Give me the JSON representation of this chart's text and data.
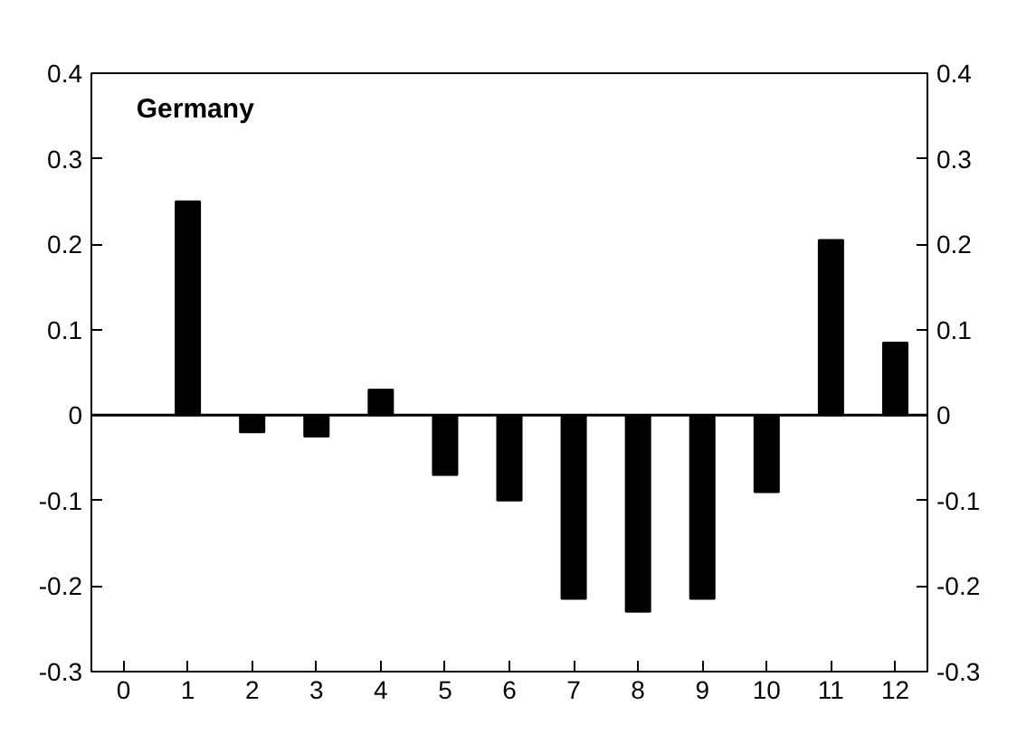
{
  "chart_data": {
    "type": "bar",
    "title": "Germany",
    "x": [
      1,
      2,
      3,
      4,
      5,
      6,
      7,
      8,
      9,
      10,
      11,
      12
    ],
    "values": [
      0.25,
      -0.02,
      -0.025,
      0.03,
      -0.07,
      -0.1,
      -0.215,
      -0.23,
      -0.215,
      -0.09,
      0.205,
      0.085
    ],
    "color": "#000000",
    "xlim": [
      -0.5,
      12.5
    ],
    "xticks": [
      0,
      1,
      2,
      3,
      4,
      5,
      6,
      7,
      8,
      9,
      10,
      11,
      12
    ],
    "ylim": [
      -0.3,
      0.4
    ],
    "yticks": [
      -0.3,
      -0.2,
      -0.1,
      0,
      0.1,
      0.2,
      0.3,
      0.4
    ],
    "y2lim": [
      -0.3,
      0.4
    ],
    "y2ticks": [
      -0.3,
      -0.2,
      -0.1,
      0,
      0.1,
      0.2,
      0.3,
      0.4
    ],
    "ref_lines": [
      {
        "axis": "y",
        "value": 0,
        "label": null
      }
    ],
    "grid": false
  }
}
